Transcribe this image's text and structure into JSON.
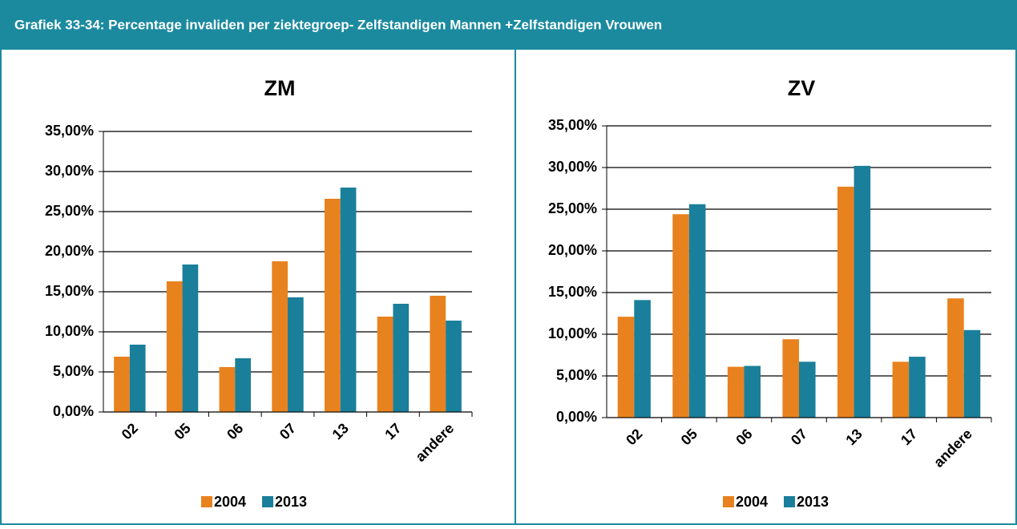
{
  "header": {
    "title": "Grafiek 33-34: Percentage invaliden per ziektegroep- Zelfstandigen Mannen +Zelfstandigen Vrouwen"
  },
  "chart_data": [
    {
      "type": "bar",
      "title": "ZM",
      "categories": [
        "02",
        "05",
        "06",
        "07",
        "13",
        "17",
        "andere"
      ],
      "series": [
        {
          "name": "2004",
          "color": "#e8821e",
          "values": [
            6.9,
            16.3,
            5.6,
            18.8,
            26.6,
            11.9,
            14.5
          ]
        },
        {
          "name": "2013",
          "color": "#1a7f9a",
          "values": [
            8.4,
            18.4,
            6.7,
            14.3,
            28.0,
            13.5,
            11.4
          ]
        }
      ],
      "ylim": [
        0,
        35
      ],
      "yticks": [
        {
          "value": 0,
          "label": "0,00%"
        },
        {
          "value": 5,
          "label": "5,00%"
        },
        {
          "value": 10,
          "label": "10,00%"
        },
        {
          "value": 15,
          "label": "15,00%"
        },
        {
          "value": 20,
          "label": "20,00%"
        },
        {
          "value": 25,
          "label": "25,00%"
        },
        {
          "value": 30,
          "label": "30,00%"
        },
        {
          "value": 35,
          "label": "35,00%"
        }
      ],
      "grid": true,
      "legend": "bottom"
    },
    {
      "type": "bar",
      "title": "ZV",
      "categories": [
        "02",
        "05",
        "06",
        "07",
        "13",
        "17",
        "andere"
      ],
      "series": [
        {
          "name": "2004",
          "color": "#e8821e",
          "values": [
            12.1,
            24.4,
            6.1,
            9.4,
            27.7,
            6.7,
            14.3
          ]
        },
        {
          "name": "2013",
          "color": "#1a7f9a",
          "values": [
            14.1,
            25.6,
            6.2,
            6.7,
            30.2,
            7.3,
            10.5
          ]
        }
      ],
      "ylim": [
        0,
        35
      ],
      "yticks": [
        {
          "value": 0,
          "label": "0,00%"
        },
        {
          "value": 5,
          "label": "5,00%"
        },
        {
          "value": 10,
          "label": "10,00%"
        },
        {
          "value": 15,
          "label": "15,00%"
        },
        {
          "value": 20,
          "label": "20,00%"
        },
        {
          "value": 25,
          "label": "25,00%"
        },
        {
          "value": 30,
          "label": "30,00%"
        },
        {
          "value": 35,
          "label": "35,00%"
        }
      ],
      "grid": true,
      "legend": "bottom"
    }
  ]
}
